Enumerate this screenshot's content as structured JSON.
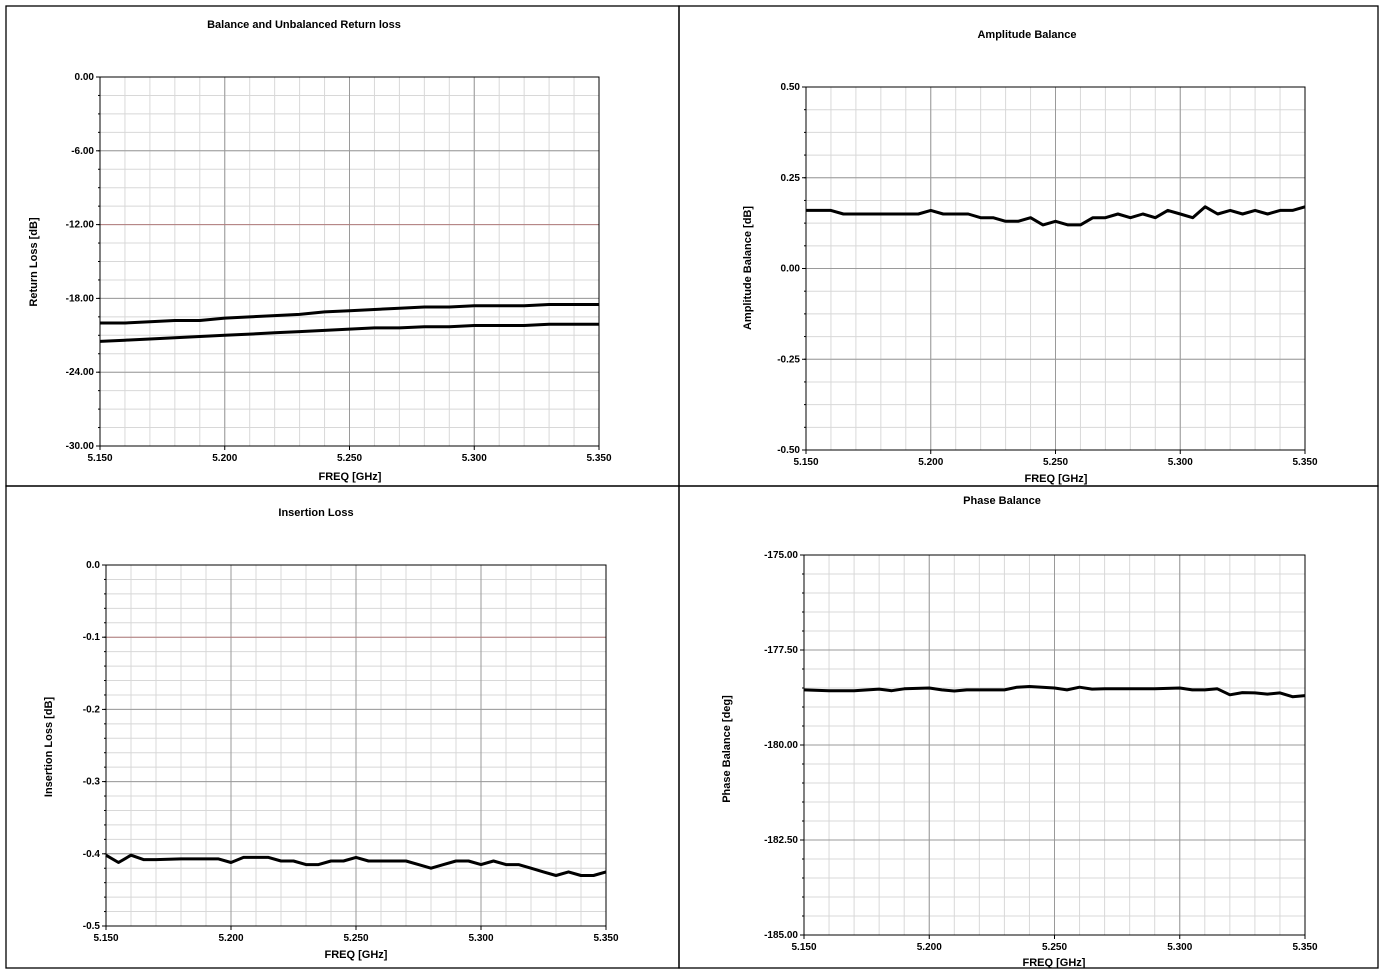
{
  "chart_data": [
    {
      "type": "line",
      "title": "Balance and Unbalanced Return loss",
      "xlabel": "FREQ [GHz]",
      "ylabel": "Return Loss [dB]",
      "xlim": [
        5.15,
        5.35
      ],
      "ylim": [
        -30,
        0
      ],
      "xticks": [
        "5.150",
        "5.200",
        "5.250",
        "5.300",
        "5.350"
      ],
      "yticks": [
        "0.00",
        "-6.00",
        "-12.00",
        "-18.00",
        "-24.00",
        "-30.00"
      ],
      "ytick_values": [
        0,
        -6,
        -12,
        -18,
        -24,
        -30
      ],
      "grid": true,
      "emphasis_gridline": -12,
      "x": [
        5.15,
        5.16,
        5.17,
        5.18,
        5.19,
        5.2,
        5.21,
        5.22,
        5.23,
        5.24,
        5.25,
        5.26,
        5.27,
        5.28,
        5.29,
        5.3,
        5.31,
        5.32,
        5.33,
        5.34,
        5.35
      ],
      "series": [
        {
          "values": [
            -20.0,
            -20.0,
            -19.9,
            -19.8,
            -19.8,
            -19.6,
            -19.5,
            -19.4,
            -19.3,
            -19.1,
            -19.0,
            -18.9,
            -18.8,
            -18.7,
            -18.7,
            -18.6,
            -18.6,
            -18.6,
            -18.5,
            -18.5,
            -18.5
          ]
        },
        {
          "values": [
            -21.5,
            -21.4,
            -21.3,
            -21.2,
            -21.1,
            -21.0,
            -20.9,
            -20.8,
            -20.7,
            -20.6,
            -20.5,
            -20.4,
            -20.4,
            -20.3,
            -20.3,
            -20.2,
            -20.2,
            -20.2,
            -20.1,
            -20.1,
            -20.1
          ]
        }
      ]
    },
    {
      "type": "line",
      "title": "Amplitude Balance",
      "xlabel": "FREQ [GHz]",
      "ylabel": "Amplitude Balance [dB]",
      "xlim": [
        5.15,
        5.35
      ],
      "ylim": [
        -0.5,
        0.5
      ],
      "xticks": [
        "5.150",
        "5.200",
        "5.250",
        "5.300",
        "5.350"
      ],
      "yticks": [
        "0.50",
        "0.25",
        "0.00",
        "-0.25",
        "-0.50"
      ],
      "ytick_values": [
        0.5,
        0.25,
        0,
        -0.25,
        -0.5
      ],
      "grid": true,
      "x": [
        5.15,
        5.16,
        5.165,
        5.17,
        5.18,
        5.19,
        5.195,
        5.2,
        5.205,
        5.215,
        5.22,
        5.225,
        5.23,
        5.235,
        5.24,
        5.245,
        5.25,
        5.255,
        5.26,
        5.265,
        5.27,
        5.275,
        5.28,
        5.285,
        5.29,
        5.295,
        5.3,
        5.305,
        5.31,
        5.315,
        5.32,
        5.325,
        5.33,
        5.335,
        5.34,
        5.345,
        5.35
      ],
      "series": [
        {
          "values": [
            0.16,
            0.16,
            0.15,
            0.15,
            0.15,
            0.15,
            0.15,
            0.16,
            0.15,
            0.15,
            0.14,
            0.14,
            0.13,
            0.13,
            0.14,
            0.12,
            0.13,
            0.12,
            0.12,
            0.14,
            0.14,
            0.15,
            0.14,
            0.15,
            0.14,
            0.16,
            0.15,
            0.14,
            0.17,
            0.15,
            0.16,
            0.15,
            0.16,
            0.15,
            0.16,
            0.16,
            0.17
          ]
        }
      ]
    },
    {
      "type": "line",
      "title": "Insertion Loss",
      "xlabel": "FREQ [GHz]",
      "ylabel": "Insertion Loss [dB]",
      "xlim": [
        5.15,
        5.35
      ],
      "ylim": [
        -0.5,
        0.0
      ],
      "xticks": [
        "5.150",
        "5.200",
        "5.250",
        "5.300",
        "5.350"
      ],
      "yticks": [
        "0.0",
        "-0.1",
        "-0.2",
        "-0.3",
        "-0.4",
        "-0.5"
      ],
      "ytick_values": [
        0,
        -0.1,
        -0.2,
        -0.3,
        -0.4,
        -0.5
      ],
      "grid": true,
      "emphasis_gridline": -0.1,
      "x": [
        5.15,
        5.155,
        5.16,
        5.165,
        5.17,
        5.18,
        5.19,
        5.195,
        5.2,
        5.205,
        5.21,
        5.215,
        5.22,
        5.225,
        5.23,
        5.235,
        5.24,
        5.245,
        5.25,
        5.255,
        5.26,
        5.265,
        5.27,
        5.275,
        5.28,
        5.285,
        5.29,
        5.295,
        5.3,
        5.305,
        5.31,
        5.315,
        5.32,
        5.325,
        5.33,
        5.335,
        5.34,
        5.345,
        5.35
      ],
      "series": [
        {
          "values": [
            -0.402,
            -0.412,
            -0.402,
            -0.408,
            -0.408,
            -0.407,
            -0.407,
            -0.407,
            -0.412,
            -0.405,
            -0.405,
            -0.405,
            -0.41,
            -0.41,
            -0.415,
            -0.415,
            -0.41,
            -0.41,
            -0.405,
            -0.41,
            -0.41,
            -0.41,
            -0.41,
            -0.415,
            -0.42,
            -0.415,
            -0.41,
            -0.41,
            -0.415,
            -0.41,
            -0.415,
            -0.415,
            -0.42,
            -0.425,
            -0.43,
            -0.425,
            -0.43,
            -0.43,
            -0.425
          ]
        }
      ]
    },
    {
      "type": "line",
      "title": "Phase Balance",
      "xlabel": "FREQ [GHz]",
      "ylabel": "Phase Balance [deg]",
      "xlim": [
        5.15,
        5.35
      ],
      "ylim": [
        -185,
        -175
      ],
      "xticks": [
        "5.150",
        "5.200",
        "5.250",
        "5.300",
        "5.350"
      ],
      "yticks": [
        "-175.00",
        "-177.50",
        "-180.00",
        "-182.50",
        "-185.00"
      ],
      "ytick_values": [
        -175,
        -177.5,
        -180,
        -182.5,
        -185
      ],
      "grid": true,
      "x": [
        5.15,
        5.16,
        5.17,
        5.18,
        5.185,
        5.19,
        5.2,
        5.205,
        5.21,
        5.215,
        5.22,
        5.23,
        5.235,
        5.24,
        5.25,
        5.255,
        5.26,
        5.265,
        5.27,
        5.28,
        5.29,
        5.3,
        5.305,
        5.31,
        5.315,
        5.32,
        5.325,
        5.33,
        5.335,
        5.34,
        5.345,
        5.35
      ],
      "series": [
        {
          "values": [
            -178.55,
            -178.57,
            -178.57,
            -178.53,
            -178.57,
            -178.52,
            -178.5,
            -178.55,
            -178.58,
            -178.55,
            -178.55,
            -178.55,
            -178.48,
            -178.46,
            -178.5,
            -178.55,
            -178.48,
            -178.53,
            -178.52,
            -178.52,
            -178.52,
            -178.5,
            -178.55,
            -178.55,
            -178.52,
            -178.68,
            -178.62,
            -178.63,
            -178.66,
            -178.63,
            -178.73,
            -178.7
          ]
        }
      ]
    }
  ]
}
